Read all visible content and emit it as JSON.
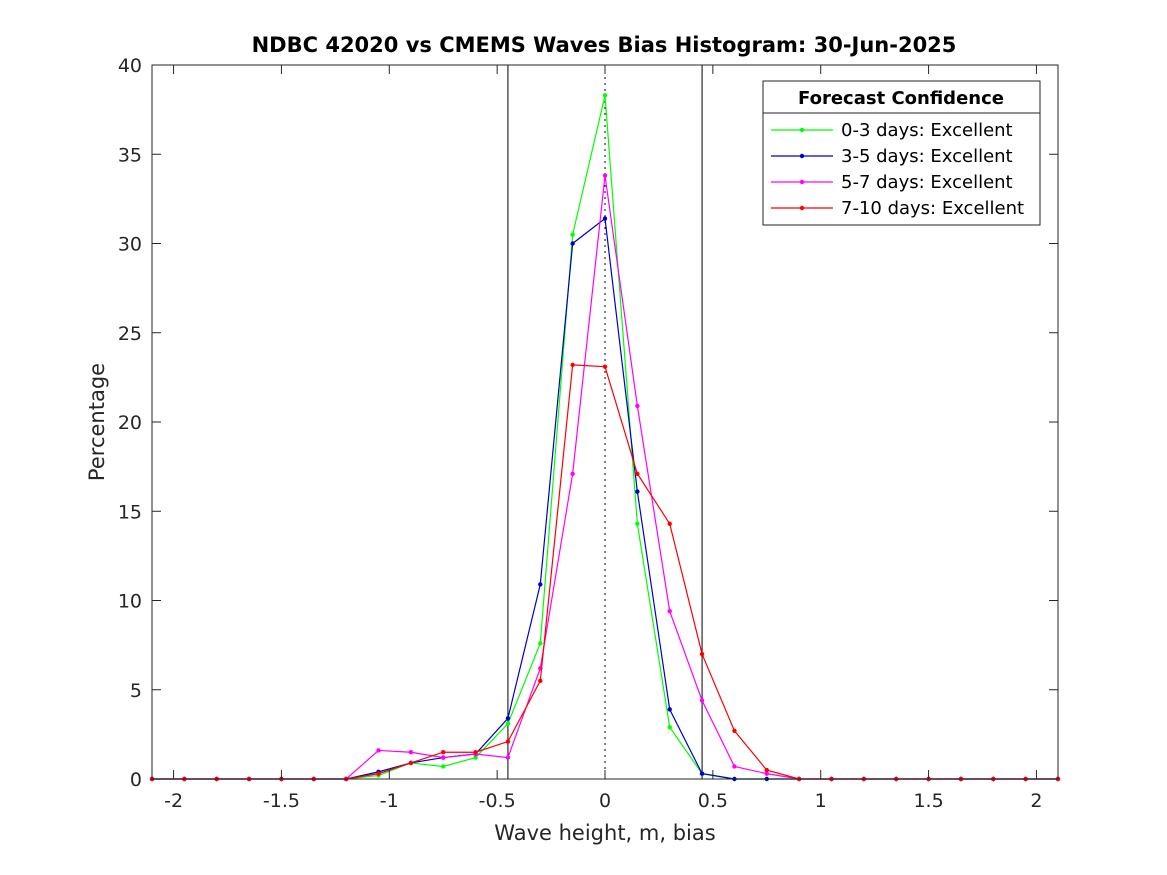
{
  "chart_data": {
    "type": "line",
    "title": "NDBC 42020 vs CMEMS Waves Bias Histogram: 30-Jun-2025",
    "xlabel": "Wave height, m, bias",
    "ylabel": "Percentage",
    "xlim": [
      -2.1,
      2.1
    ],
    "ylim": [
      0,
      40
    ],
    "xticks": [
      -2,
      -1.5,
      -1,
      -0.5,
      0,
      0.5,
      1,
      1.5,
      2
    ],
    "xtick_labels": [
      "-2",
      "-1.5",
      "-1",
      "-0.5",
      "0",
      "0.5",
      "1",
      "1.5",
      "2"
    ],
    "yticks": [
      0,
      5,
      10,
      15,
      20,
      25,
      30,
      35,
      40
    ],
    "ytick_labels": [
      "0",
      "5",
      "10",
      "15",
      "20",
      "25",
      "30",
      "35",
      "40"
    ],
    "grid": false,
    "reference_lines": [
      {
        "x": -0.45,
        "style": "solid"
      },
      {
        "x": 0,
        "style": "dotted"
      },
      {
        "x": 0.45,
        "style": "solid"
      }
    ],
    "legend": {
      "title": "Forecast Confidence",
      "position": "top-right"
    },
    "x": [
      -2.1,
      -1.95,
      -1.8,
      -1.65,
      -1.5,
      -1.35,
      -1.2,
      -1.05,
      -0.9,
      -0.75,
      -0.6,
      -0.45,
      -0.3,
      -0.15,
      0,
      0.15,
      0.3,
      0.45,
      0.6,
      0.75,
      0.9,
      1.05,
      1.2,
      1.35,
      1.5,
      1.65,
      1.8,
      1.95,
      2.1
    ],
    "series": [
      {
        "name": "0-3 days: Excellent",
        "color": "#00ff00",
        "values": [
          0,
          0,
          0,
          0,
          0,
          0,
          0,
          0.2,
          0.9,
          0.7,
          1.2,
          3.1,
          7.6,
          30.5,
          38.3,
          14.3,
          2.9,
          0.3,
          0,
          0,
          0,
          0,
          0,
          0,
          0,
          0,
          0,
          0,
          0
        ]
      },
      {
        "name": "3-5 days: Excellent",
        "color": "#0000cc",
        "values": [
          0,
          0,
          0,
          0,
          0,
          0,
          0,
          0.4,
          0.9,
          1.2,
          1.4,
          3.4,
          10.9,
          30.0,
          31.4,
          16.1,
          3.9,
          0.3,
          0,
          0,
          0,
          0,
          0,
          0,
          0,
          0,
          0,
          0,
          0
        ]
      },
      {
        "name": "5-7 days: Excellent",
        "color": "#ff00ff",
        "values": [
          0,
          0,
          0,
          0,
          0,
          0,
          0,
          1.6,
          1.5,
          1.2,
          1.4,
          1.2,
          6.2,
          17.1,
          33.8,
          20.9,
          9.4,
          4.4,
          0.7,
          0.3,
          0,
          0,
          0,
          0,
          0,
          0,
          0,
          0,
          0
        ]
      },
      {
        "name": "7-10 days: Excellent",
        "color": "#ff0000",
        "values": [
          0,
          0,
          0,
          0,
          0,
          0,
          0,
          0.3,
          0.9,
          1.5,
          1.5,
          2.1,
          5.5,
          23.2,
          23.1,
          17.1,
          14.3,
          7.0,
          2.7,
          0.5,
          0,
          0,
          0,
          0,
          0,
          0,
          0,
          0,
          0
        ]
      }
    ]
  }
}
